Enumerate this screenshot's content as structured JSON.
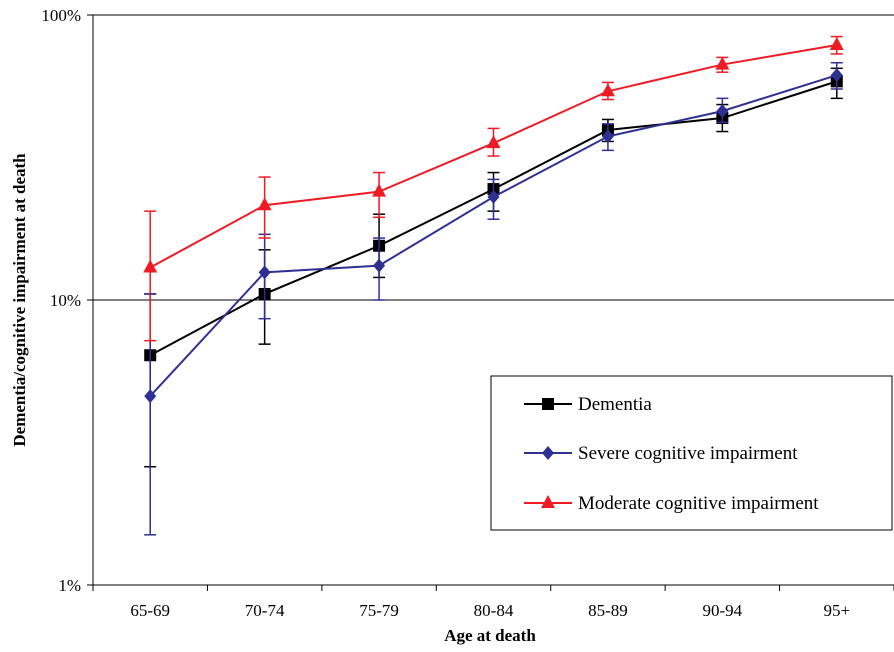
{
  "chart_data": {
    "type": "line",
    "title": "",
    "xlabel": "Age at death",
    "ylabel": "Dementia/cognitive impairment at death",
    "y_scale": "log",
    "ylim": [
      1,
      100
    ],
    "y_ticks": [
      1,
      10,
      100
    ],
    "y_tick_labels": [
      "1%",
      "10%",
      "100%"
    ],
    "grid": "horizontal line at 10%",
    "legend_position": "bottom-right",
    "categories": [
      "65-69",
      "70-74",
      "75-79",
      "80-84",
      "85-89",
      "90-94",
      "95+"
    ],
    "series": [
      {
        "name": "Dementia",
        "color": "#000000",
        "marker": "square",
        "values": [
          6.4,
          10.5,
          15.5,
          24.5,
          39.5,
          43.5,
          58.5
        ],
        "error_low": [
          2.6,
          7.0,
          12.0,
          20.5,
          36.0,
          39.0,
          51.0
        ],
        "error_high": [
          10.5,
          15.0,
          20.0,
          28.0,
          43.0,
          48.5,
          65.0
        ]
      },
      {
        "name": "Severe cognitive impairment",
        "color": "#2e3192",
        "marker": "diamond",
        "values": [
          4.6,
          12.5,
          13.2,
          23.0,
          37.5,
          46.0,
          61.5
        ],
        "error_low": [
          1.5,
          8.6,
          10.0,
          19.2,
          33.5,
          42.0,
          55.0
        ],
        "error_high": [
          10.5,
          17.0,
          16.5,
          26.5,
          41.5,
          51.0,
          68.0
        ]
      },
      {
        "name": "Moderate cognitive impairment",
        "color": "#ed1c24",
        "marker": "triangle",
        "values": [
          13.0,
          21.5,
          24.0,
          35.5,
          54.0,
          67.0,
          78.5
        ],
        "error_low": [
          7.2,
          16.5,
          19.5,
          32.0,
          50.5,
          63.0,
          73.0
        ],
        "error_high": [
          20.5,
          27.0,
          28.0,
          40.0,
          58.0,
          71.0,
          84.0
        ]
      }
    ]
  }
}
